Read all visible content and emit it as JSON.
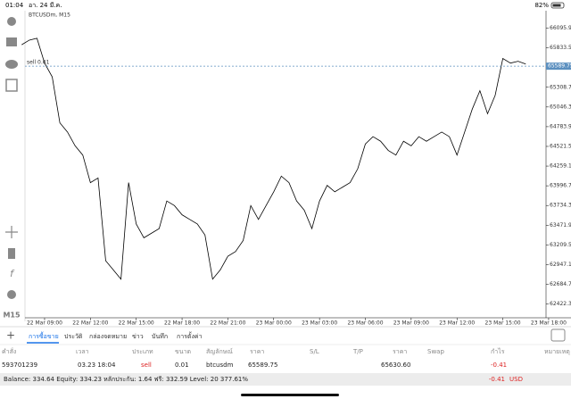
{
  "status_bar": {
    "time": "01:04",
    "date": "อา. 24 มี.ค.",
    "battery": "82%"
  },
  "side_label": "M15",
  "chart_data": {
    "type": "line",
    "title": "BTCUSDm, M15",
    "categories": [
      null,
      null,
      null,
      "22 Mar 09:00",
      null,
      null,
      null,
      null,
      null,
      "22 Mar 12:00",
      null,
      null,
      null,
      null,
      null,
      "22 Mar 15:00",
      null,
      null,
      null,
      null,
      null,
      "22 Mar 18:00",
      null,
      null,
      null,
      null,
      null,
      "22 Mar 21:00",
      null,
      null,
      null,
      null,
      null,
      "23 Mar 00:00",
      null,
      null,
      null,
      null,
      null,
      "23 Mar 03:00",
      null,
      null,
      null,
      null,
      null,
      "23 Mar 06:00",
      null,
      null,
      null,
      null,
      null,
      "23 Mar 09:00",
      null,
      null,
      null,
      null,
      null,
      "23 Mar 12:00",
      null,
      null,
      null,
      null,
      null,
      "23 Mar 15:00",
      null,
      null,
      null,
      null,
      null,
      "23 Mar 18:00"
    ],
    "series": [
      {
        "name": "BTCUSDm",
        "color": "#000000",
        "values": [
          65875.5,
          65936.7,
          65961.2,
          65630.6,
          65446.9,
          64834.7,
          64712.2,
          64528.5,
          64406.1,
          64038.7,
          64100.0,
          62997.9,
          62875.5,
          62753.0,
          64038.7,
          63487.7,
          63304.0,
          63365.3,
          63426.5,
          63793.8,
          63732.6,
          63610.2,
          63548.9,
          63487.7,
          63340.8,
          62753.0,
          62875.5,
          63059.1,
          63120.4,
          63267.3,
          63732.6,
          63548.9,
          63732.6,
          63916.3,
          64124.5,
          64038.7,
          63793.8,
          63671.4,
          63426.5,
          63793.8,
          64002.0,
          63916.3,
          63977.5,
          64038.7,
          64222.4,
          64553.0,
          64651.0,
          64589.8,
          64467.3,
          64406.1,
          64589.8,
          64528.5,
          64651.0,
          64589.8,
          64651.0,
          64712.2,
          64651.0,
          64406.1,
          64712.2,
          65018.3,
          65263.2,
          64957.1,
          65202.0,
          65691.8,
          65630.6,
          65655.1,
          65618.3,
          null,
          null,
          null
        ]
      }
    ],
    "ylim": [
      62238.6,
      66328.5
    ],
    "yticks": [
      {
        "value": 66095.9,
        "label": "66095.90"
      },
      {
        "value": 65833.5,
        "label": "65833.50"
      },
      {
        "value": 65308.7,
        "label": "65308.70"
      },
      {
        "value": 65046.3,
        "label": "65046.30"
      },
      {
        "value": 64783.9,
        "label": "64783.90"
      },
      {
        "value": 64521.5,
        "label": "64521.50"
      },
      {
        "value": 64259.1,
        "label": "64259.10"
      },
      {
        "value": 63996.7,
        "label": "63996.70"
      },
      {
        "value": 63734.3,
        "label": "63734.30"
      },
      {
        "value": 63471.9,
        "label": "63471.90"
      },
      {
        "value": 63209.5,
        "label": "63209.50"
      },
      {
        "value": 62947.1,
        "label": "62947.10"
      },
      {
        "value": 62684.7,
        "label": "62684.70"
      },
      {
        "value": 62422.3,
        "label": "62422.30"
      }
    ],
    "sell_line": {
      "label": "sell 0.01",
      "value": 65589.75,
      "color": "#5b8fbf"
    }
  },
  "tabs": [
    "การซื้อขาย",
    "ประวัติ",
    "กล่องจดหมาย",
    "ข่าว",
    "บันทึก",
    "การตั้งค่า"
  ],
  "table": {
    "headers": [
      "คำสั่ง",
      "เวลา",
      "ประเภท",
      "ขนาด",
      "สัญลักษณ์",
      "ราคา",
      "S/L",
      "T/P",
      "ราคา",
      "Swap",
      "กำไร",
      "หมายเหตุ"
    ],
    "row": {
      "order": "593701239",
      "time": "03.23 18:04",
      "type": "sell",
      "volume": "0.01",
      "symbol": "btcusdm",
      "price": "65589.75",
      "current_price": "65630.60",
      "profit": "-0.41"
    }
  },
  "balance_bar": {
    "text": "Balance: 334.64 Equity: 334.23 หลักประกัน: 1.64 ฟรี: 332.59 Level: 20 377.61%",
    "profit": "-0.41",
    "currency": "USD"
  }
}
